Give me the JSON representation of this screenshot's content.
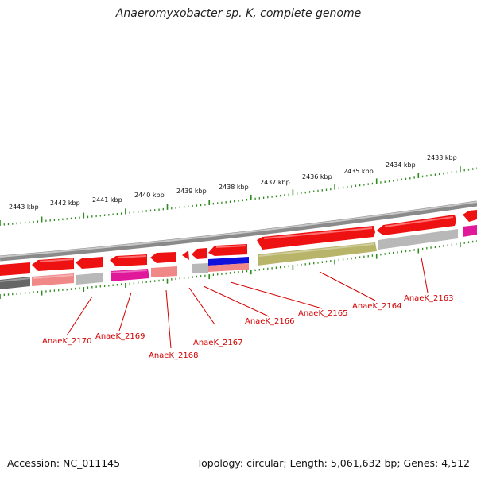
{
  "title": "Anaeromyxobacter sp. K, complete genome",
  "footer": {
    "accession": "Accession: NC_011145",
    "summary": "Topology: circular; Length: 5,061,632 bp; Genes: 4,512"
  },
  "ruler": {
    "labels": [
      "2443 kbp",
      "2442 kbp",
      "2441 kbp",
      "2440 kbp",
      "2439 kbp",
      "2438 kbp",
      "2437 kbp",
      "2436 kbp",
      "2435 kbp",
      "2434 kbp",
      "2433 kbp"
    ]
  },
  "genes": [
    {
      "label": "AnaeK_2170"
    },
    {
      "label": "AnaeK_2169"
    },
    {
      "label": "AnaeK_2168"
    },
    {
      "label": "AnaeK_2167"
    },
    {
      "label": "AnaeK_2166"
    },
    {
      "label": "AnaeK_2165"
    },
    {
      "label": "AnaeK_2164"
    },
    {
      "label": "AnaeK_2163"
    }
  ],
  "colors": {
    "cds": "#ee1111",
    "backbone": "#8a8a8a",
    "tick": "#2e8b1e",
    "label": "#d40000",
    "magenta": "#e0189a",
    "pink": "#f08888",
    "gray": "#b8b8b8",
    "dark": "#666666",
    "blue": "#1010dd",
    "olive": "#b8b46a"
  }
}
